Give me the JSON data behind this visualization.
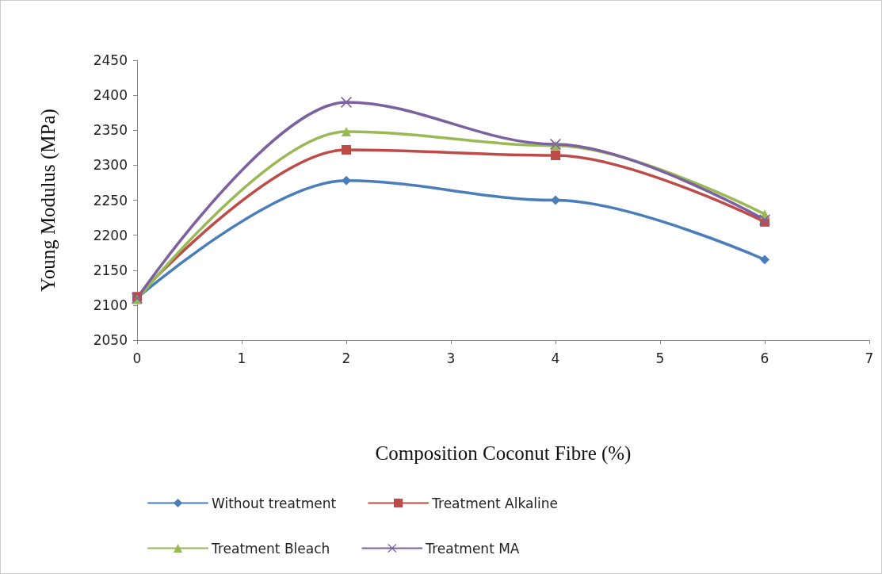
{
  "chart_data": {
    "type": "line",
    "xlabel": "Composition Coconut Fibre (%)",
    "ylabel": "Young Modulus (MPa)",
    "x": [
      0,
      2,
      4,
      6
    ],
    "series": [
      {
        "name": "Without treatment",
        "color": "#4a7ebb",
        "marker": "diamond",
        "values": [
          2110,
          2278,
          2250,
          2165
        ]
      },
      {
        "name": "Treatment Alkaline",
        "color": "#be4b48",
        "marker": "square",
        "values": [
          2112,
          2322,
          2314,
          2219
        ]
      },
      {
        "name": "Treatment Bleach",
        "color": "#98b954",
        "marker": "triangle",
        "values": [
          2108,
          2348,
          2328,
          2230
        ]
      },
      {
        "name": "Treatment MA",
        "color": "#7d60a0",
        "marker": "cross",
        "values": [
          2110,
          2390,
          2330,
          2222
        ]
      }
    ],
    "xlim": [
      0,
      7
    ],
    "xticks": [
      0,
      1,
      2,
      3,
      4,
      5,
      6,
      7
    ],
    "ylim": [
      2050,
      2450
    ],
    "yticks": [
      2050,
      2100,
      2150,
      2200,
      2250,
      2300,
      2350,
      2400,
      2450
    ],
    "grid": false,
    "legend": "bottom",
    "line_style": "solid"
  }
}
